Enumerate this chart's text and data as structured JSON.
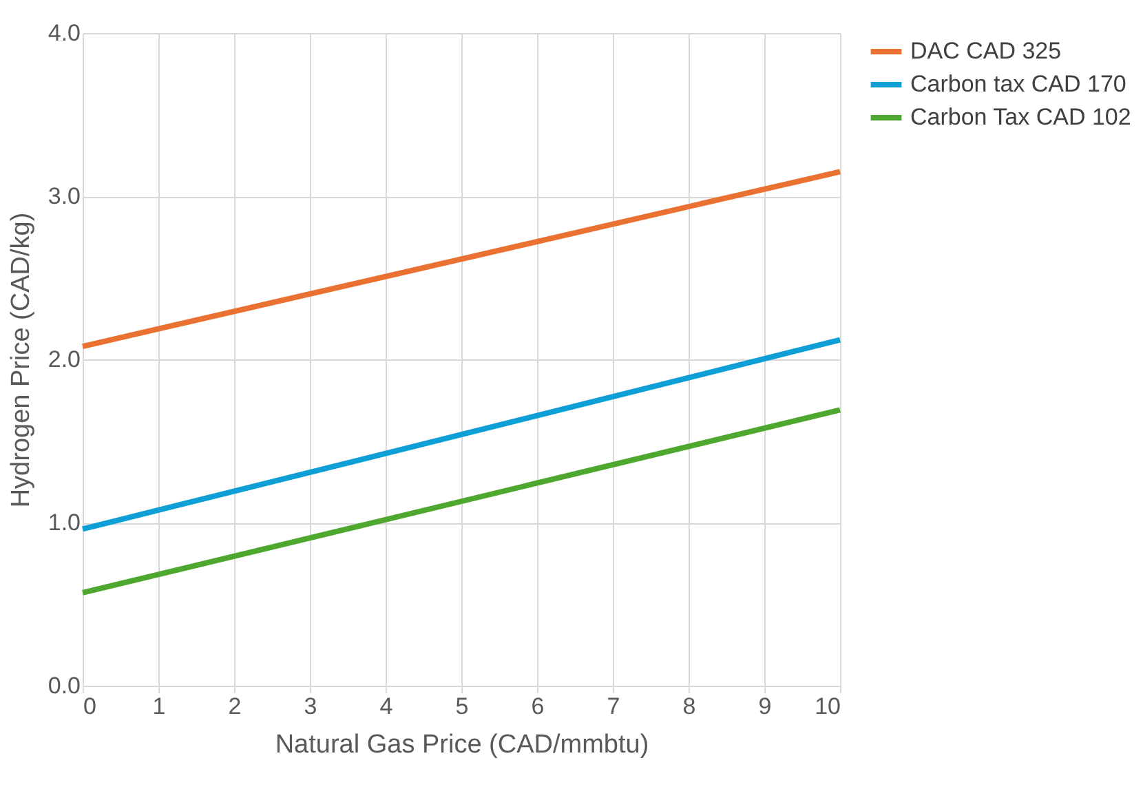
{
  "chart_data": {
    "type": "line",
    "xlabel": "Natural Gas Price (CAD/mmbtu)",
    "ylabel": "Hydrogen Price (CAD/kg)",
    "x": [
      0,
      10
    ],
    "series": [
      {
        "name": "DAC CAD 325",
        "color": "#e97132",
        "values": [
          2.08,
          3.15
        ]
      },
      {
        "name": "Carbon tax CAD 170",
        "color": "#0f9ed5",
        "values": [
          0.96,
          2.12
        ]
      },
      {
        "name": "Carbon Tax CAD 102",
        "color": "#4ea72e",
        "values": [
          0.57,
          1.69
        ]
      }
    ],
    "xlim": [
      0,
      10
    ],
    "xticks": [
      0,
      1,
      2,
      3,
      4,
      5,
      6,
      7,
      8,
      9,
      10
    ],
    "ylim": [
      0,
      4.0
    ],
    "yticks": [
      {
        "value": 0,
        "label": "0.0"
      },
      {
        "value": 1,
        "label": "1.0"
      },
      {
        "value": 2,
        "label": "2.0"
      },
      {
        "value": 3,
        "label": "3.0"
      },
      {
        "value": 4,
        "label": "4.0"
      }
    ],
    "grid": true,
    "legend": "right",
    "marker": "none",
    "line_style": "solid"
  }
}
